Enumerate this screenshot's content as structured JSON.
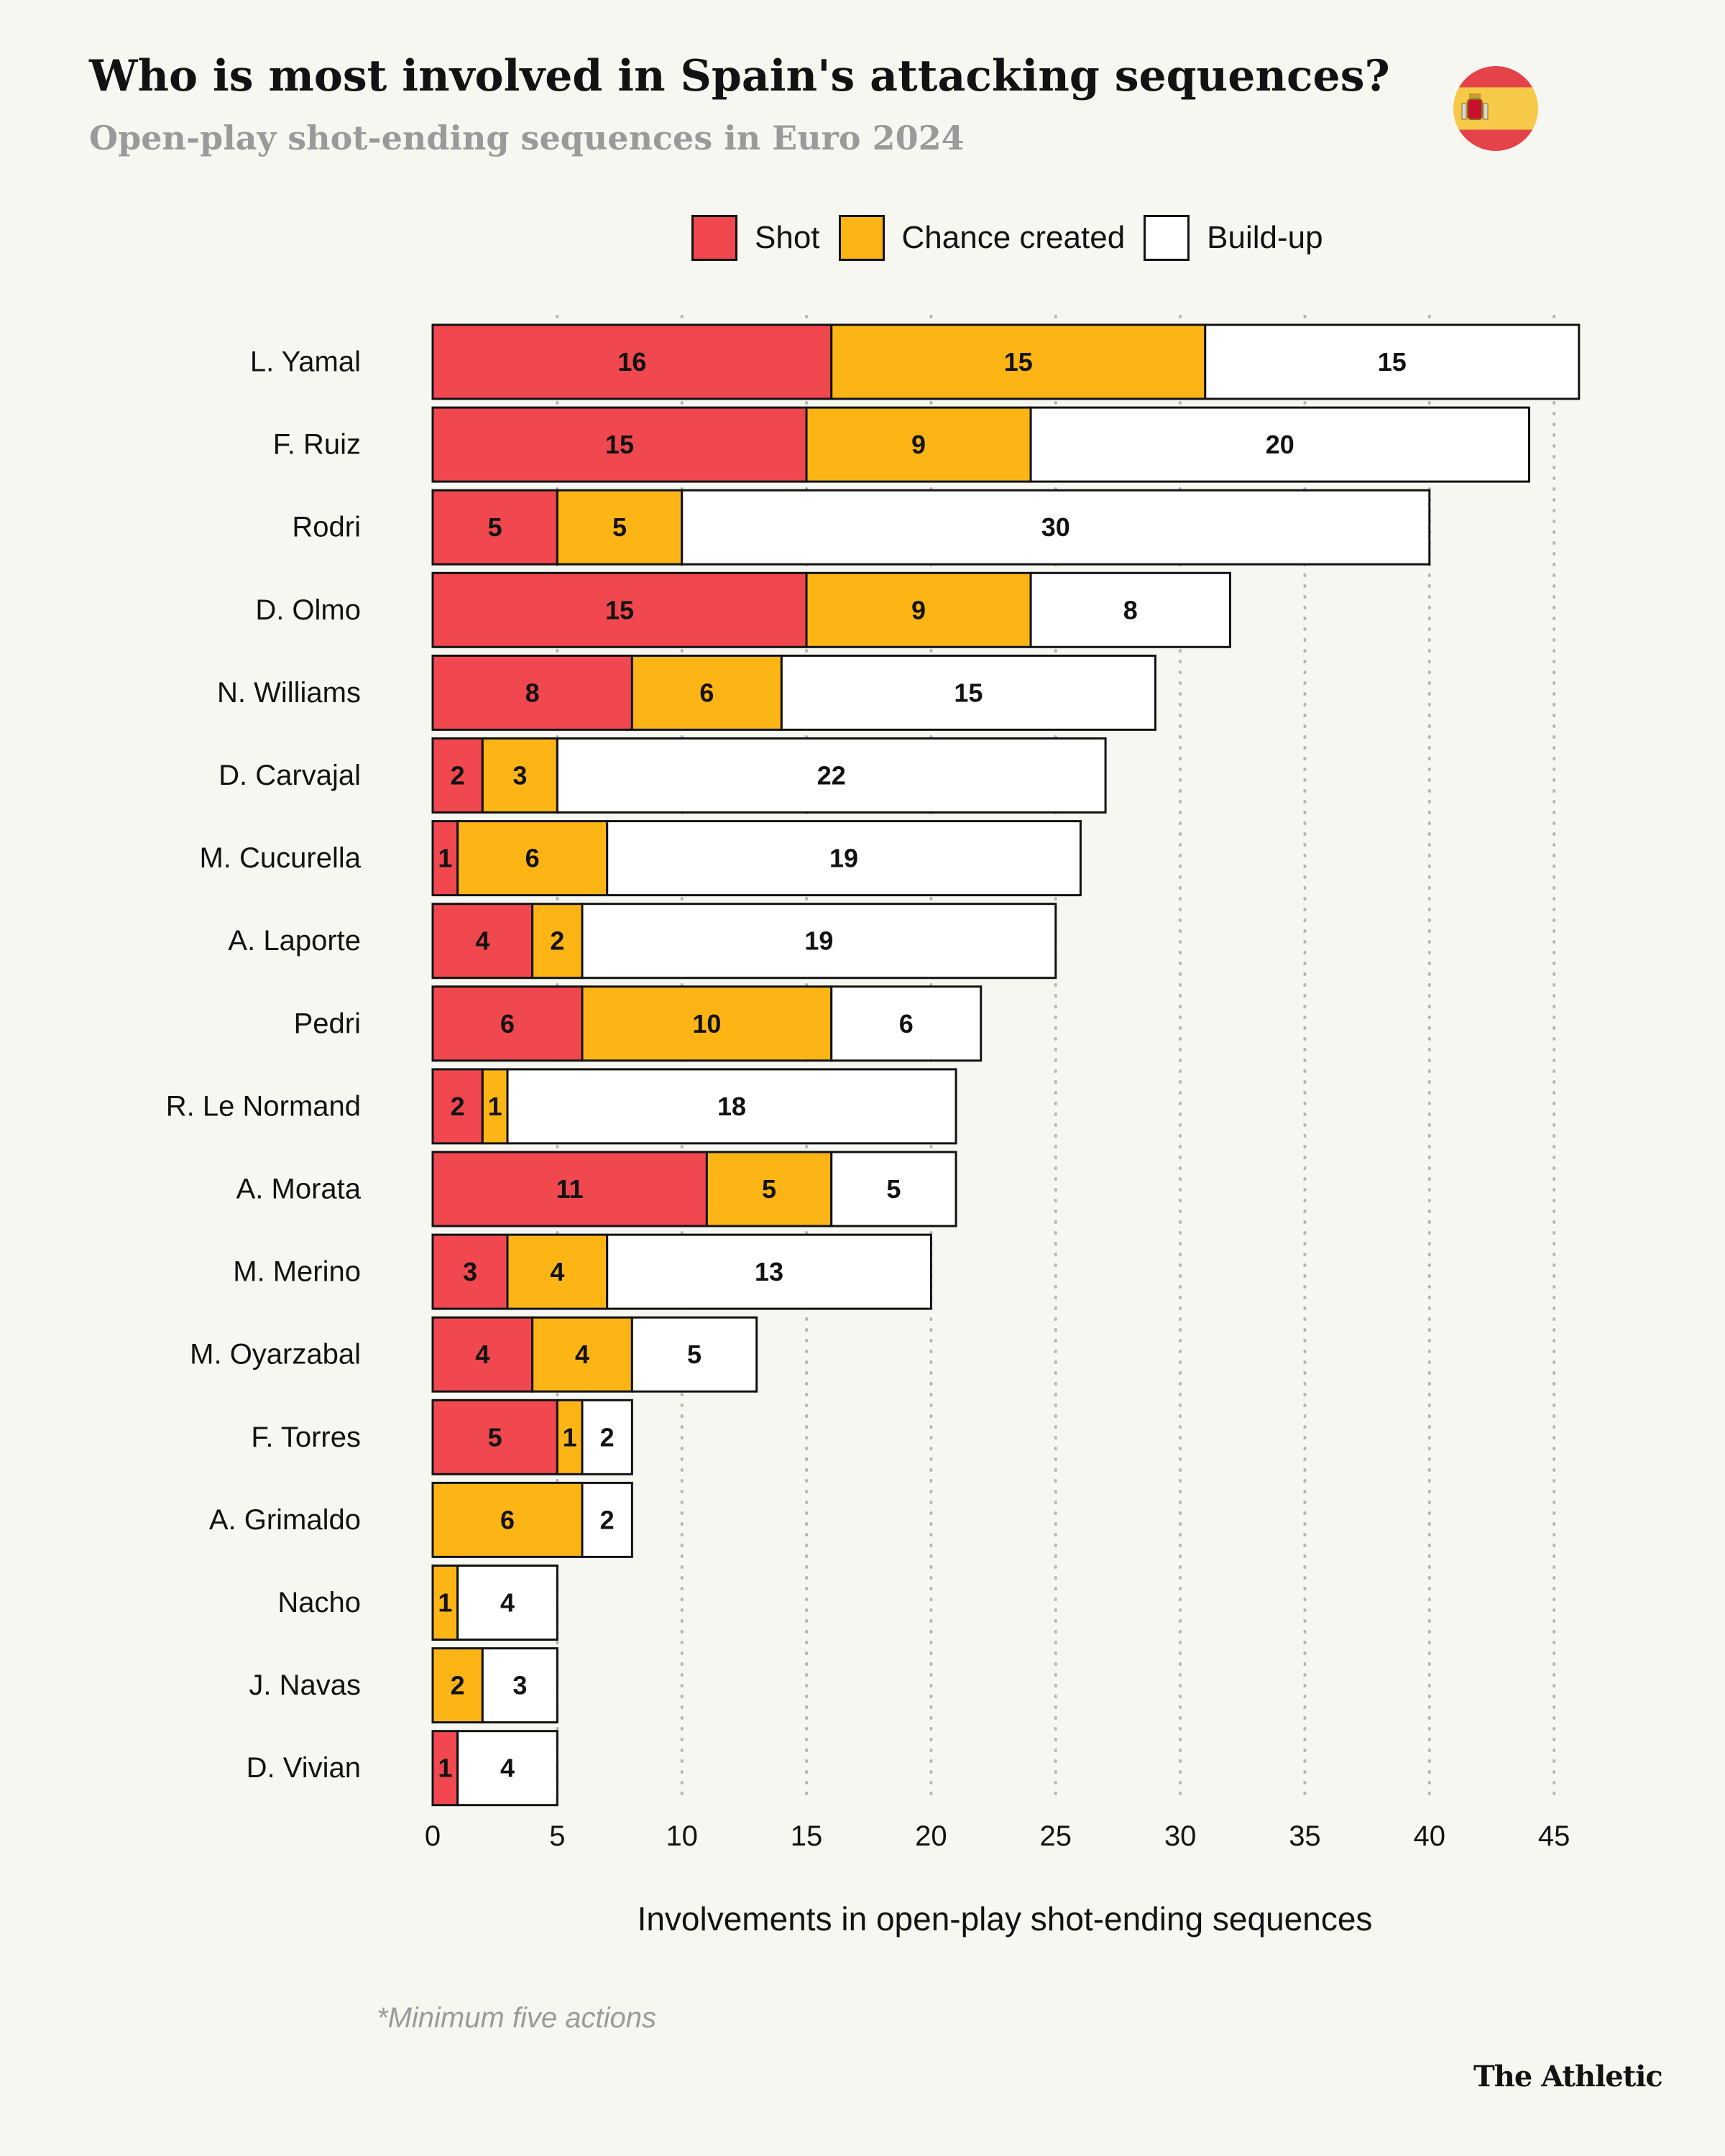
{
  "header": {
    "title": "Who is most involved in Spain's attacking sequences?",
    "subtitle": "Open-play shot-ending sequences in Euro 2024",
    "flag_icon": "spain-flag-icon"
  },
  "legend": [
    {
      "label": "Shot",
      "color": "#f0484e"
    },
    {
      "label": "Chance created",
      "color": "#fdb515"
    },
    {
      "label": "Build-up",
      "color": "#ffffff"
    }
  ],
  "footer": {
    "note": "*Minimum five actions",
    "brand": "The Athletic"
  },
  "chart_data": {
    "type": "bar",
    "orientation": "horizontal",
    "stacked": true,
    "categories": [
      "L. Yamal",
      "F. Ruiz",
      "Rodri",
      "D. Olmo",
      "N. Williams",
      "D. Carvajal",
      "M. Cucurella",
      "A. Laporte",
      "Pedri",
      "R. Le Normand",
      "A. Morata",
      "M. Merino",
      "M. Oyarzabal",
      "F. Torres",
      "A. Grimaldo",
      "Nacho",
      "J. Navas",
      "D. Vivian"
    ],
    "series": [
      {
        "name": "Shot",
        "color": "#f0484e",
        "values": [
          16,
          15,
          5,
          15,
          8,
          2,
          1,
          4,
          6,
          2,
          11,
          3,
          4,
          5,
          0,
          0,
          0,
          1
        ]
      },
      {
        "name": "Chance created",
        "color": "#fdb515",
        "values": [
          15,
          9,
          5,
          9,
          6,
          3,
          6,
          2,
          10,
          1,
          5,
          4,
          4,
          1,
          6,
          1,
          2,
          0
        ]
      },
      {
        "name": "Build-up",
        "color": "#ffffff",
        "values": [
          15,
          20,
          30,
          8,
          15,
          22,
          19,
          19,
          6,
          18,
          5,
          13,
          5,
          2,
          2,
          4,
          3,
          4
        ]
      }
    ],
    "title": "Who is most involved in Spain's attacking sequences?",
    "xlabel": "Involvements in open-play shot-ending sequences",
    "ylabel": "",
    "xlim": [
      0,
      46
    ],
    "xticks": [
      0,
      5,
      10,
      15,
      20,
      25,
      30,
      35,
      40,
      45
    ],
    "grid": "vertical dotted",
    "legend_position": "top"
  }
}
